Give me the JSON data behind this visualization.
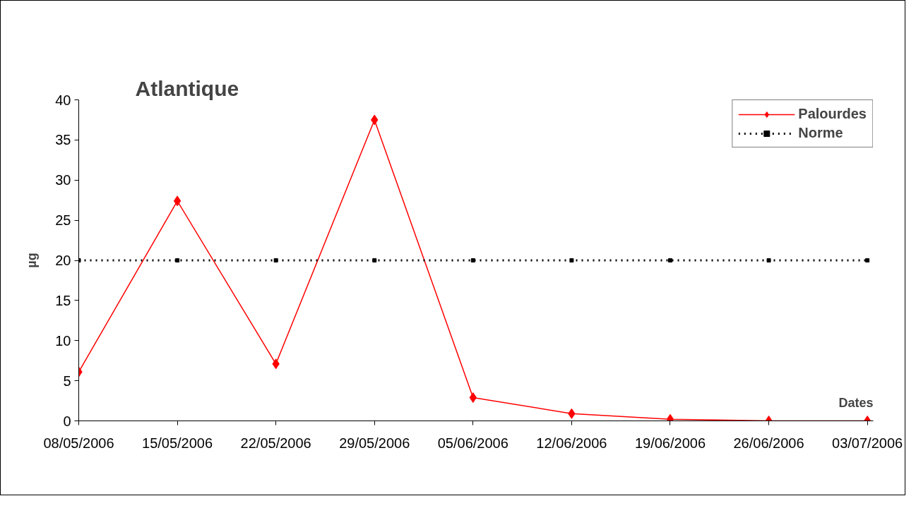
{
  "chart_data": {
    "type": "line",
    "title": "Atlantique",
    "xlabel": "Dates",
    "ylabel": "µg",
    "categories": [
      "08/05/2006",
      "15/05/2006",
      "22/05/2006",
      "29/05/2006",
      "05/06/2006",
      "12/06/2006",
      "19/06/2006",
      "26/06/2006",
      "03/07/2006"
    ],
    "series": [
      {
        "name": "Palourdes",
        "color": "#ff0000",
        "values": [
          6.1,
          27.4,
          7.1,
          37.5,
          2.9,
          0.9,
          0.2,
          0,
          0
        ],
        "marker": "diamond",
        "line_style": "solid"
      },
      {
        "name": "Norme",
        "color": "#000000",
        "values": [
          20,
          20,
          20,
          20,
          20,
          20,
          20,
          20,
          20
        ],
        "marker": "square",
        "line_style": "dotted"
      }
    ],
    "ylim": [
      0,
      40
    ],
    "yticks": [
      0,
      5,
      10,
      15,
      20,
      25,
      30,
      35,
      40
    ],
    "grid": false,
    "legend": "top right"
  }
}
